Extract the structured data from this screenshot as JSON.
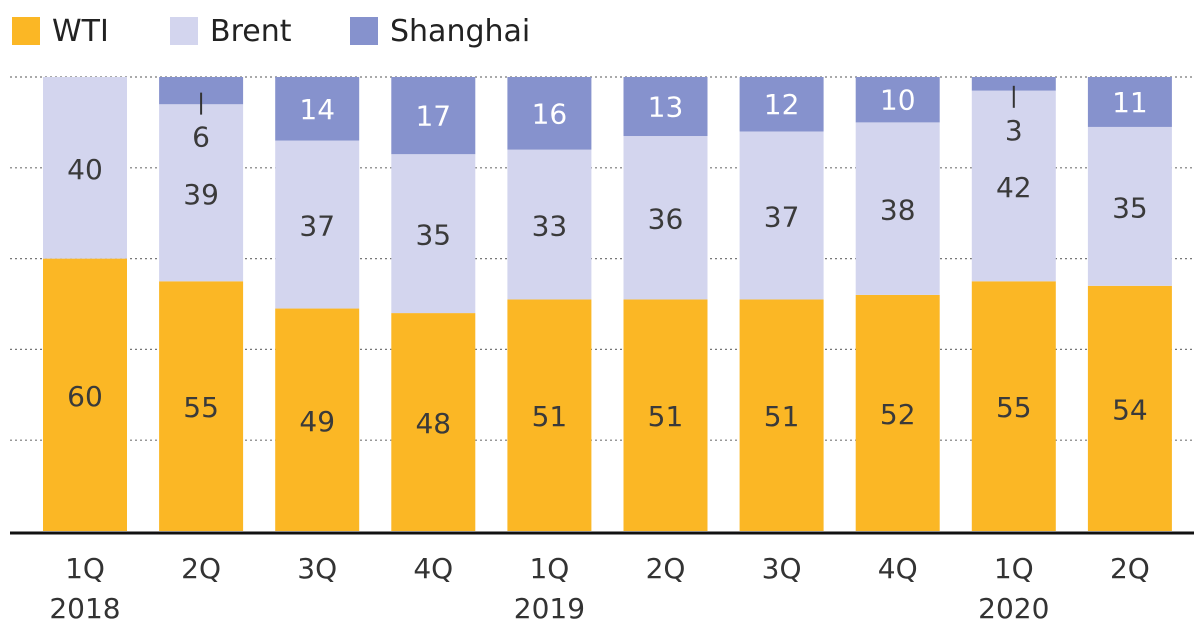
{
  "chart_data": {
    "type": "bar",
    "stacked": true,
    "categories": [
      "1Q",
      "2Q",
      "3Q",
      "4Q",
      "1Q",
      "2Q",
      "3Q",
      "4Q",
      "1Q",
      "2Q"
    ],
    "years": [
      "2018",
      "",
      "",
      "",
      "2019",
      "",
      "",
      "",
      "2020",
      ""
    ],
    "series": [
      {
        "name": "WTI",
        "color": "#fbb725",
        "values": [
          60,
          55,
          49,
          48,
          51,
          51,
          51,
          52,
          55,
          54
        ]
      },
      {
        "name": "Brent",
        "color": "#d3d5ee",
        "values": [
          40,
          39,
          37,
          35,
          33,
          36,
          37,
          38,
          42,
          35
        ]
      },
      {
        "name": "Shanghai",
        "color": "#8692cd",
        "values": [
          0,
          6,
          14,
          17,
          16,
          13,
          12,
          10,
          3,
          11
        ]
      }
    ],
    "ylim": [
      0,
      100
    ],
    "grid": true,
    "legend": "top-left"
  }
}
